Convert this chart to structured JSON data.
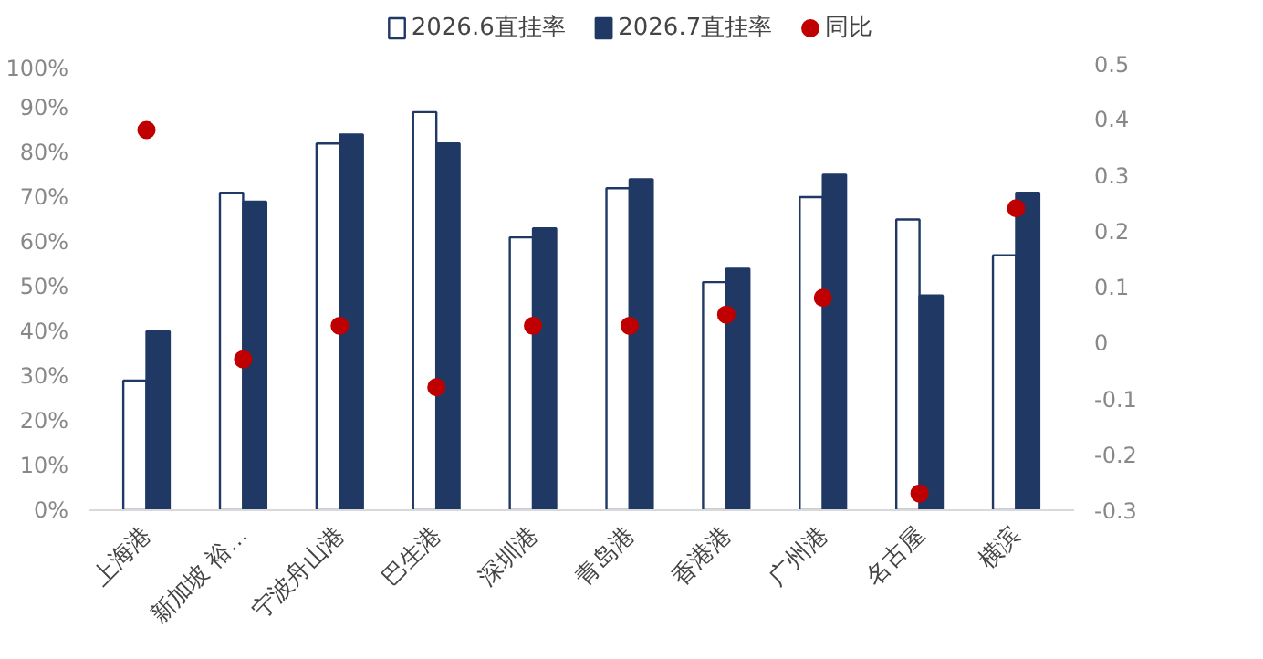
{
  "chart_data": {
    "type": "bar",
    "categories": [
      "上海港",
      "新加坡 裕…",
      "宁波舟山港",
      "巴生港",
      "深圳港",
      "青岛港",
      "香港港",
      "广州港",
      "名古屋",
      "横滨"
    ],
    "series": [
      {
        "name": "2026.6直挂率",
        "type": "bar",
        "color": "#ffffff",
        "values": [
          29,
          71,
          82,
          89,
          61,
          72,
          51,
          70,
          65,
          57
        ]
      },
      {
        "name": "2026.7直挂率",
        "type": "bar",
        "color": "#1f3864",
        "values": [
          40,
          69,
          84,
          82,
          63,
          74,
          54,
          75,
          48,
          71
        ]
      },
      {
        "name": "同比",
        "type": "scatter",
        "axis": "y2",
        "color": "#c00000",
        "values": [
          0.38,
          -0.03,
          0.03,
          -0.08,
          0.03,
          0.03,
          0.05,
          0.08,
          -0.27,
          0.24
        ]
      }
    ],
    "ylim": [
      0,
      100
    ],
    "yticks": [
      {
        "value": 0,
        "label": "0%"
      },
      {
        "value": 10,
        "label": "10%"
      },
      {
        "value": 20,
        "label": "20%"
      },
      {
        "value": 30,
        "label": "30%"
      },
      {
        "value": 40,
        "label": "40%"
      },
      {
        "value": 50,
        "label": "50%"
      },
      {
        "value": 60,
        "label": "60%"
      },
      {
        "value": 70,
        "label": "70%"
      },
      {
        "value": 80,
        "label": "80%"
      },
      {
        "value": 90,
        "label": "90%"
      },
      {
        "value": 100,
        "label": "100%"
      }
    ],
    "y2lim": [
      -0.3,
      0.5
    ],
    "y2ticks": [
      -0.3,
      -0.2,
      -0.1,
      0,
      0.1,
      0.2,
      0.3,
      0.4,
      0.5
    ],
    "grid": false,
    "legend": "top",
    "marker": "circle"
  }
}
